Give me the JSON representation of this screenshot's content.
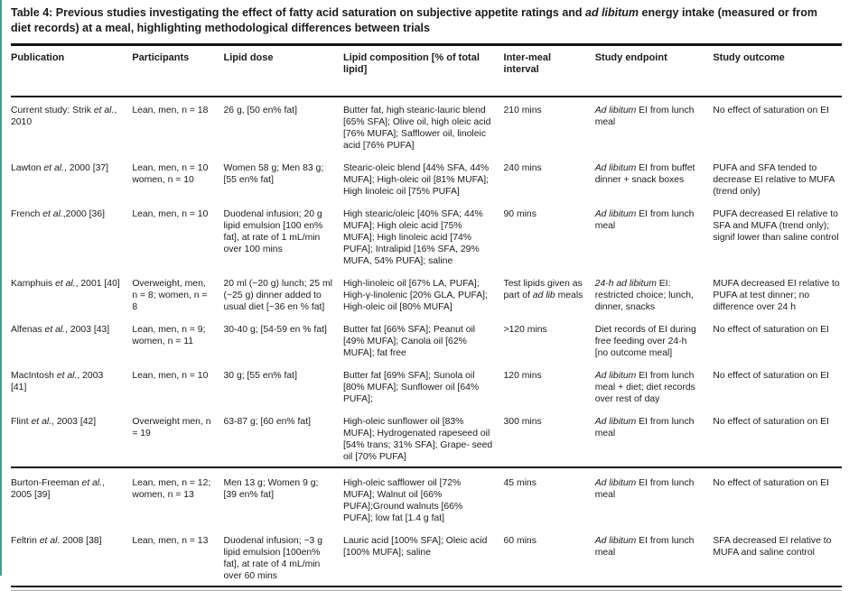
{
  "page": {
    "title_segments": [
      {
        "t": "Table 4: Previous studies investigating the effect of fatty acid saturation on subjective appetite ratings and "
      },
      {
        "t": "ad libitum",
        "i": true
      },
      {
        "t": " energy intake (measured or from diet records) at a meal, highlighting methodological differences between trials"
      }
    ],
    "colors": {
      "accent_edge": "#3aa18e",
      "rule": "#161616",
      "text": "#1b1b1b"
    }
  },
  "table": {
    "headers": [
      "Publication",
      "Participants",
      "Lipid dose",
      "Lipid composition [% of total lipid]",
      "Inter-meal interval",
      "Study endpoint",
      "Study outcome"
    ],
    "rows": [
      {
        "separator_before": false,
        "cells": [
          [
            {
              "t": "Current study: Strik "
            },
            {
              "t": "et al.",
              "i": true
            },
            {
              "t": ", 2010"
            }
          ],
          [
            {
              "t": "Lean, men, n = 18"
            }
          ],
          [
            {
              "t": "26 g, [50 en% fat]"
            }
          ],
          [
            {
              "t": "Butter fat, high stearic-lauric blend [65% SFA]; Olive oil, high oleic acid [76% MUFA]; Safflower oil, linoleic acid [76% PUFA]"
            }
          ],
          [
            {
              "t": "210 mins"
            }
          ],
          [
            {
              "t": "Ad libitum",
              "i": true
            },
            {
              "t": " EI from lunch meal"
            }
          ],
          [
            {
              "t": "No effect of saturation on EI"
            }
          ]
        ]
      },
      {
        "separator_before": false,
        "cells": [
          [
            {
              "t": "Lawton "
            },
            {
              "t": "et al.",
              "i": true
            },
            {
              "t": ", 2000 [37]"
            }
          ],
          [
            {
              "t": "Lean, men, n = 10 women, n = 10"
            }
          ],
          [
            {
              "t": "Women 58 g; Men 83 g; [55 en% fat]"
            }
          ],
          [
            {
              "t": "Stearic-oleic blend [44% SFA, 44% MUFA]; High-oleic oil [81% MUFA]; High linoleic oil [75% PUFA]"
            }
          ],
          [
            {
              "t": "240 mins"
            }
          ],
          [
            {
              "t": "Ad libitum",
              "i": true
            },
            {
              "t": " EI from buffet dinner + snack boxes"
            }
          ],
          [
            {
              "t": "PUFA and SFA tended to decrease EI relative to MUFA (trend only)"
            }
          ]
        ]
      },
      {
        "separator_before": false,
        "cells": [
          [
            {
              "t": "French "
            },
            {
              "t": "et al.",
              "i": true
            },
            {
              "t": ",2000 [36]"
            }
          ],
          [
            {
              "t": "Lean, men, n = 10"
            }
          ],
          [
            {
              "t": "Duodenal infusion; 20 g lipid emulsion [100 en% fat], at rate of 1 mL/min over 100 mins"
            }
          ],
          [
            {
              "t": "High stearic/oleic [40% SFA; 44% MUFA]; High oleic acid [75% MUFA]; High linoleic acid [74% PUFA]; Intralipid [16% SFA, 29% MUFA, 54% PUFA]; saline"
            }
          ],
          [
            {
              "t": "90 mins"
            }
          ],
          [
            {
              "t": "Ad libitum",
              "i": true
            },
            {
              "t": " EI from lunch meal"
            }
          ],
          [
            {
              "t": "PUFA decreased EI relative to SFA and MUFA (trend only); signif lower than saline control"
            }
          ]
        ]
      },
      {
        "separator_before": false,
        "cells": [
          [
            {
              "t": "Kamphuis "
            },
            {
              "t": "et al.",
              "i": true
            },
            {
              "t": ", 2001 [40]"
            }
          ],
          [
            {
              "t": "Overweight, men, n = 8; women, n = 8"
            }
          ],
          [
            {
              "t": "20 ml (~20 g) lunch; 25 ml (~25 g) dinner added to usual diet [~36 en % fat]"
            }
          ],
          [
            {
              "t": "High-linoleic oil [67% LA, PUFA]; High-γ-linolenic [20% GLA, PUFA]; High-oleic oil [80% MUFA]"
            }
          ],
          [
            {
              "t": "Test lipids given as part of "
            },
            {
              "t": "ad lib",
              "i": true
            },
            {
              "t": " meals"
            }
          ],
          [
            {
              "t": "24-h ad libitum",
              "i": true
            },
            {
              "t": " EI: restricted choice; lunch, dinner, snacks"
            }
          ],
          [
            {
              "t": "MUFA decreased EI relative to PUFA at test dinner; no difference over 24 h"
            }
          ]
        ]
      },
      {
        "separator_before": false,
        "cells": [
          [
            {
              "t": "Alfenas "
            },
            {
              "t": "et al.",
              "i": true
            },
            {
              "t": ", 2003 [43]"
            }
          ],
          [
            {
              "t": "Lean, men, n = 9; women, n = 11"
            }
          ],
          [
            {
              "t": "30-40 g; [54-59 en % fat]"
            }
          ],
          [
            {
              "t": "Butter fat [66% SFA]; Peanut oil [49% MUFA]; Canola oil [62% MUFA]; fat free"
            }
          ],
          [
            {
              "t": ">120 mins"
            }
          ],
          [
            {
              "t": "Diet records of EI during free feeding over 24-h [no outcome meal]"
            }
          ],
          [
            {
              "t": "No effect of saturation on EI"
            }
          ]
        ]
      },
      {
        "separator_before": false,
        "cells": [
          [
            {
              "t": "MacIntosh "
            },
            {
              "t": "et al.",
              "i": true
            },
            {
              "t": ", 2003 [41]"
            }
          ],
          [
            {
              "t": "Lean, men, n = 10"
            }
          ],
          [
            {
              "t": "30 g; [55 en% fat]"
            }
          ],
          [
            {
              "t": "Butter fat [69% SFA]; Sunola oil [80% MUFA]; Sunflower oil [64% PUFA];"
            }
          ],
          [
            {
              "t": "120 mins"
            }
          ],
          [
            {
              "t": "Ad libitum",
              "i": true
            },
            {
              "t": " EI from lunch meal + diet; diet records over rest of day"
            }
          ],
          [
            {
              "t": "No effect of saturation on EI"
            }
          ]
        ]
      },
      {
        "separator_before": false,
        "cells": [
          [
            {
              "t": "Flint "
            },
            {
              "t": "et al.",
              "i": true
            },
            {
              "t": ", 2003 [42]"
            }
          ],
          [
            {
              "t": "Overweight men, n = 19"
            }
          ],
          [
            {
              "t": "63-87 g; [60 en% fat]"
            }
          ],
          [
            {
              "t": "High-oleic sunflower oil [83% MUFA]; Hydrogenated rapeseed oil [54% trans; 31% SFA]; Grape- seed oil [70% PUFA]"
            }
          ],
          [
            {
              "t": "300 mins"
            }
          ],
          [
            {
              "t": "Ad libitum",
              "i": true
            },
            {
              "t": " EI from lunch meal"
            }
          ],
          [
            {
              "t": "No effect of saturation on EI"
            }
          ]
        ]
      },
      {
        "separator_before": true,
        "cells": [
          [
            {
              "t": "Burton-Freeman "
            },
            {
              "t": "et al.",
              "i": true
            },
            {
              "t": ", 2005 [39]"
            }
          ],
          [
            {
              "t": "Lean, men, n = 12; women, n = 13"
            }
          ],
          [
            {
              "t": "Men 13 g; Women 9 g; [39 en% fat]"
            }
          ],
          [
            {
              "t": "High-oleic safflower oil [72% MUFA]; Walnut oil [66% PUFA];Ground walnuts [66% PUFA]; low fat [1.4 g fat]"
            }
          ],
          [
            {
              "t": "45 mins"
            }
          ],
          [
            {
              "t": "Ad libitum",
              "i": true
            },
            {
              "t": " EI from lunch meal"
            }
          ],
          [
            {
              "t": "No effect of saturation on EI"
            }
          ]
        ]
      },
      {
        "separator_before": false,
        "cells": [
          [
            {
              "t": "Feltrin "
            },
            {
              "t": "et al.",
              "i": true
            },
            {
              "t": " 2008 [38]"
            }
          ],
          [
            {
              "t": "Lean, men, n = 13"
            }
          ],
          [
            {
              "t": "Duodenal infusion; ~3 g lipid emulsion [100en% fat], at rate of 4 mL/min over 60 mins"
            }
          ],
          [
            {
              "t": "Lauric acid [100% SFA]; Oleic acid [100% MUFA]; saline"
            }
          ],
          [
            {
              "t": "60 mins"
            }
          ],
          [
            {
              "t": "Ad libitum",
              "i": true
            },
            {
              "t": " EI from lunch meal"
            }
          ],
          [
            {
              "t": "SFA decreased EI relative to MUFA and saline control"
            }
          ]
        ]
      }
    ],
    "column_widths_pct": [
      14.6,
      11.0,
      14.4,
      19.3,
      11.0,
      14.2,
      15.5
    ]
  }
}
